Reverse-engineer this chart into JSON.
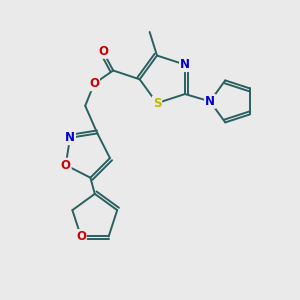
{
  "background_color": "#eaeaea",
  "bond_color": "#2a6060",
  "atom_colors": {
    "N": "#0000cc",
    "O": "#cc0000",
    "S": "#bbbb00",
    "C": "#2a6060"
  },
  "figsize": [
    3.0,
    3.0
  ],
  "dpi": 100
}
